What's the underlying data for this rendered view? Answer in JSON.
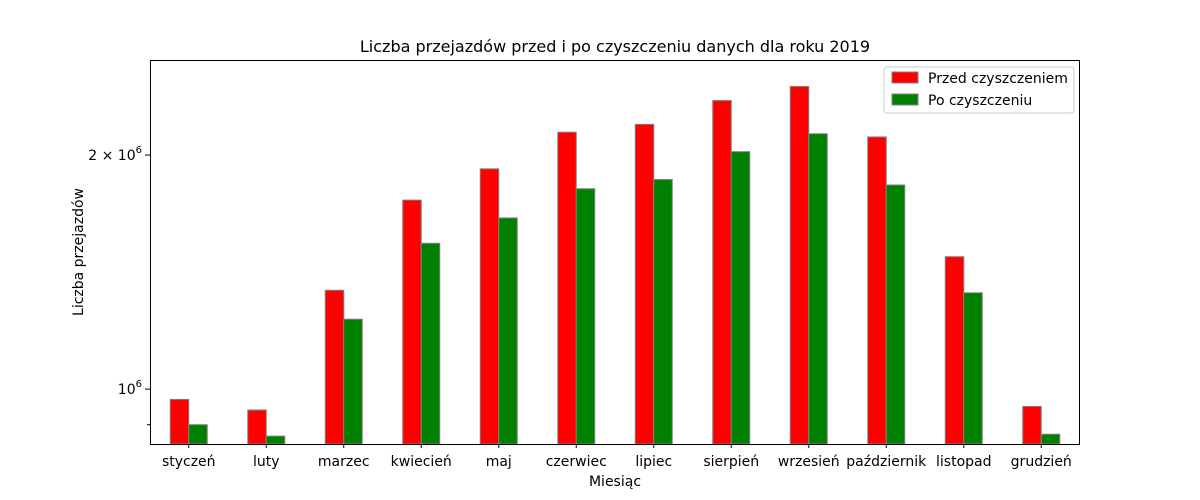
{
  "chart_data": {
    "type": "bar",
    "title": "Liczba przejazdów przed i po czyszczeniu danych dla roku 2019",
    "xlabel": "Miesiąc",
    "ylabel": "Liczba przejazdów",
    "yscale": "log",
    "ylim": [
      850000,
      2650000
    ],
    "yticks": [
      {
        "value": 1000000,
        "mantissa": "",
        "exponent": "6"
      },
      {
        "value": 2000000,
        "mantissa": "2 × 10",
        "exponent": "6"
      }
    ],
    "grid": false,
    "legend_position": "top-right",
    "categories": [
      "styczeń",
      "luty",
      "marzec",
      "kwiecień",
      "maj",
      "czerwiec",
      "lipiec",
      "sierpień",
      "wrzesień",
      "październik",
      "listopad",
      "grudzień"
    ],
    "series": [
      {
        "name": "Przed czyszczeniem",
        "color": "#ff0000",
        "values": [
          970000,
          940000,
          1340000,
          1750000,
          1920000,
          2140000,
          2190000,
          2350000,
          2450000,
          2110000,
          1480000,
          950000
        ]
      },
      {
        "name": "Po czyszczeniu",
        "color": "#008000",
        "values": [
          900000,
          870000,
          1230000,
          1540000,
          1660000,
          1810000,
          1860000,
          2020000,
          2130000,
          1830000,
          1330000,
          875000
        ]
      }
    ]
  }
}
